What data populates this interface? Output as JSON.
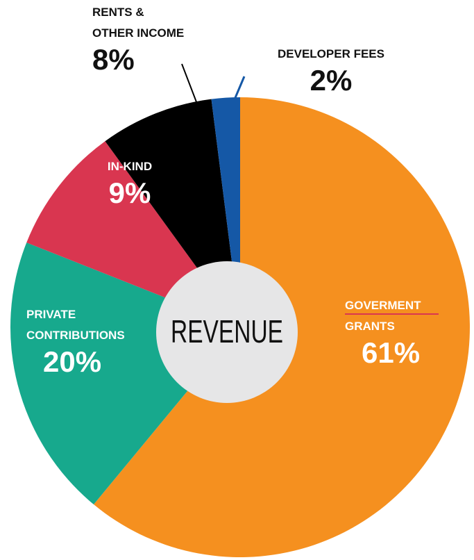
{
  "chart_data": {
    "type": "pie",
    "title": "REVENUE",
    "categories": [
      "GOVERMENT\nGRANTS",
      "PRIVATE\nCONTRIBUTIONS",
      "IN-KIND",
      "RENTS &\nOTHER INCOME",
      "DEVELOPER FEES"
    ],
    "values": [
      61,
      20,
      9,
      8,
      2
    ],
    "value_labels": [
      "61%",
      "20%",
      "9%",
      "8%",
      "2%"
    ],
    "colors": [
      "#f5901f",
      "#17a98d",
      "#d93650",
      "#000000",
      "#1558a6"
    ]
  }
}
